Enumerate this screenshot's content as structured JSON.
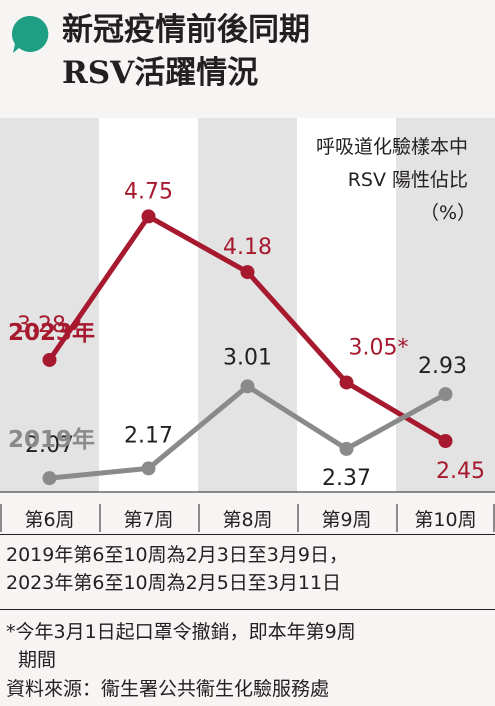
{
  "header": {
    "title_line1": "新冠疫情前後同期",
    "title_line2": "RSV活躍情況"
  },
  "chart_data": {
    "type": "line",
    "categories": [
      "第6周",
      "第7周",
      "第8周",
      "第9周",
      "第10周"
    ],
    "ylabel_lines": [
      "呼吸道化驗樣本中",
      "RSV 陽性佔比",
      "（%）"
    ],
    "ylim": [
      1.5,
      5.3
    ],
    "grid": false,
    "legend": "inline",
    "series": [
      {
        "name": "2023年",
        "color": "#a6192e",
        "values": [
          3.28,
          4.75,
          4.18,
          3.05,
          2.45
        ],
        "labels": [
          "3.28",
          "4.75",
          "4.18",
          "3.05*",
          "2.45"
        ]
      },
      {
        "name": "2019年",
        "color": "#8a8a8a",
        "values": [
          2.07,
          2.17,
          3.01,
          2.37,
          2.93
        ],
        "labels": [
          "2.07",
          "2.17",
          "3.01",
          "2.37",
          "2.93"
        ]
      }
    ]
  },
  "notes": {
    "date_range_line1": "2019年第6至10周為2月3日至3月9日，",
    "date_range_line2": "2023年第6至10周為2月5日至3月11日",
    "footnote_line1": "*今年3月1日起口罩令撤銷，即本年第9周",
    "footnote_line2": "期間",
    "source": "資料來源：衞生署公共衞生化驗服務處"
  }
}
